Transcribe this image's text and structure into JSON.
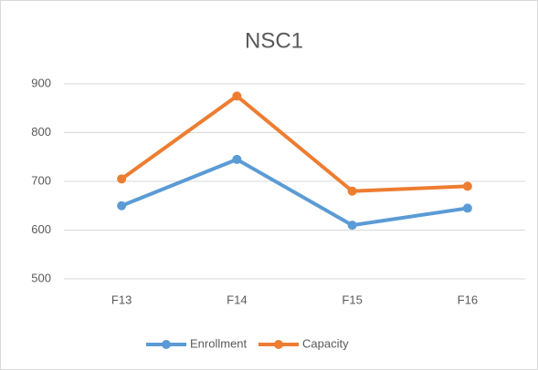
{
  "chart_data": {
    "type": "line",
    "title": "NSC1",
    "categories": [
      "F13",
      "F14",
      "F15",
      "F16"
    ],
    "series": [
      {
        "name": "Enrollment",
        "color": "#5b9bd5",
        "values": [
          650,
          745,
          610,
          645
        ]
      },
      {
        "name": "Capacity",
        "color": "#ed7d31",
        "values": [
          705,
          875,
          680,
          690
        ]
      }
    ],
    "ylim": [
      500,
      900
    ],
    "yticks": [
      500,
      600,
      700,
      800,
      900
    ],
    "grid": true,
    "legend": "bottom"
  }
}
